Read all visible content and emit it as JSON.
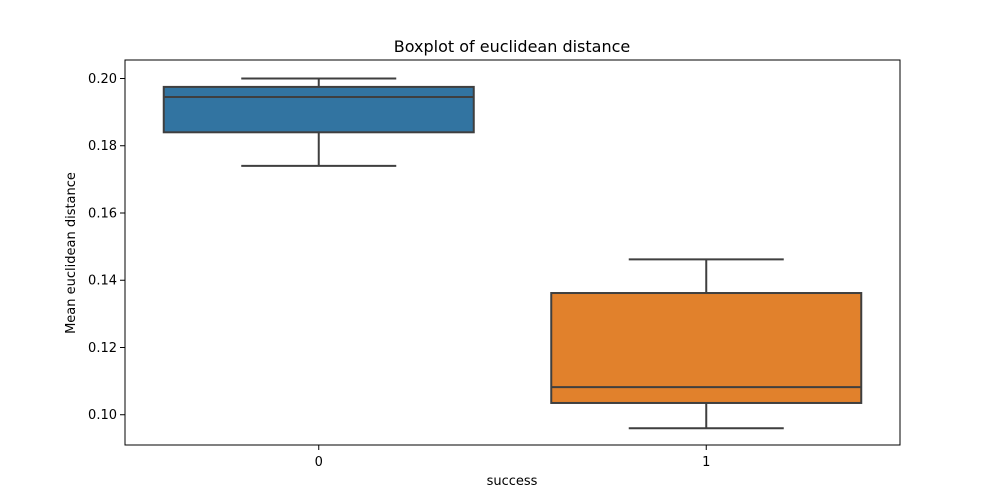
{
  "chart_data": {
    "type": "box",
    "title": "Boxplot of euclidean distance",
    "xlabel": "success",
    "ylabel": "Mean euclidean distance",
    "categories": [
      "0",
      "1"
    ],
    "series": [
      {
        "category": "0",
        "color": "#3274a1",
        "whisker_low": 0.174,
        "q1": 0.184,
        "median": 0.1945,
        "q3": 0.1975,
        "whisker_high": 0.2
      },
      {
        "category": "1",
        "color": "#e1812c",
        "whisker_low": 0.096,
        "q1": 0.1035,
        "median": 0.1082,
        "q3": 0.1362,
        "whisker_high": 0.1462
      }
    ],
    "ylim": [
      0.091,
      0.2055
    ],
    "yticks": [
      "0.10",
      "0.12",
      "0.14",
      "0.16",
      "0.18",
      "0.20"
    ],
    "grid": false,
    "legend": false,
    "line_color": "#3f3f3f"
  }
}
